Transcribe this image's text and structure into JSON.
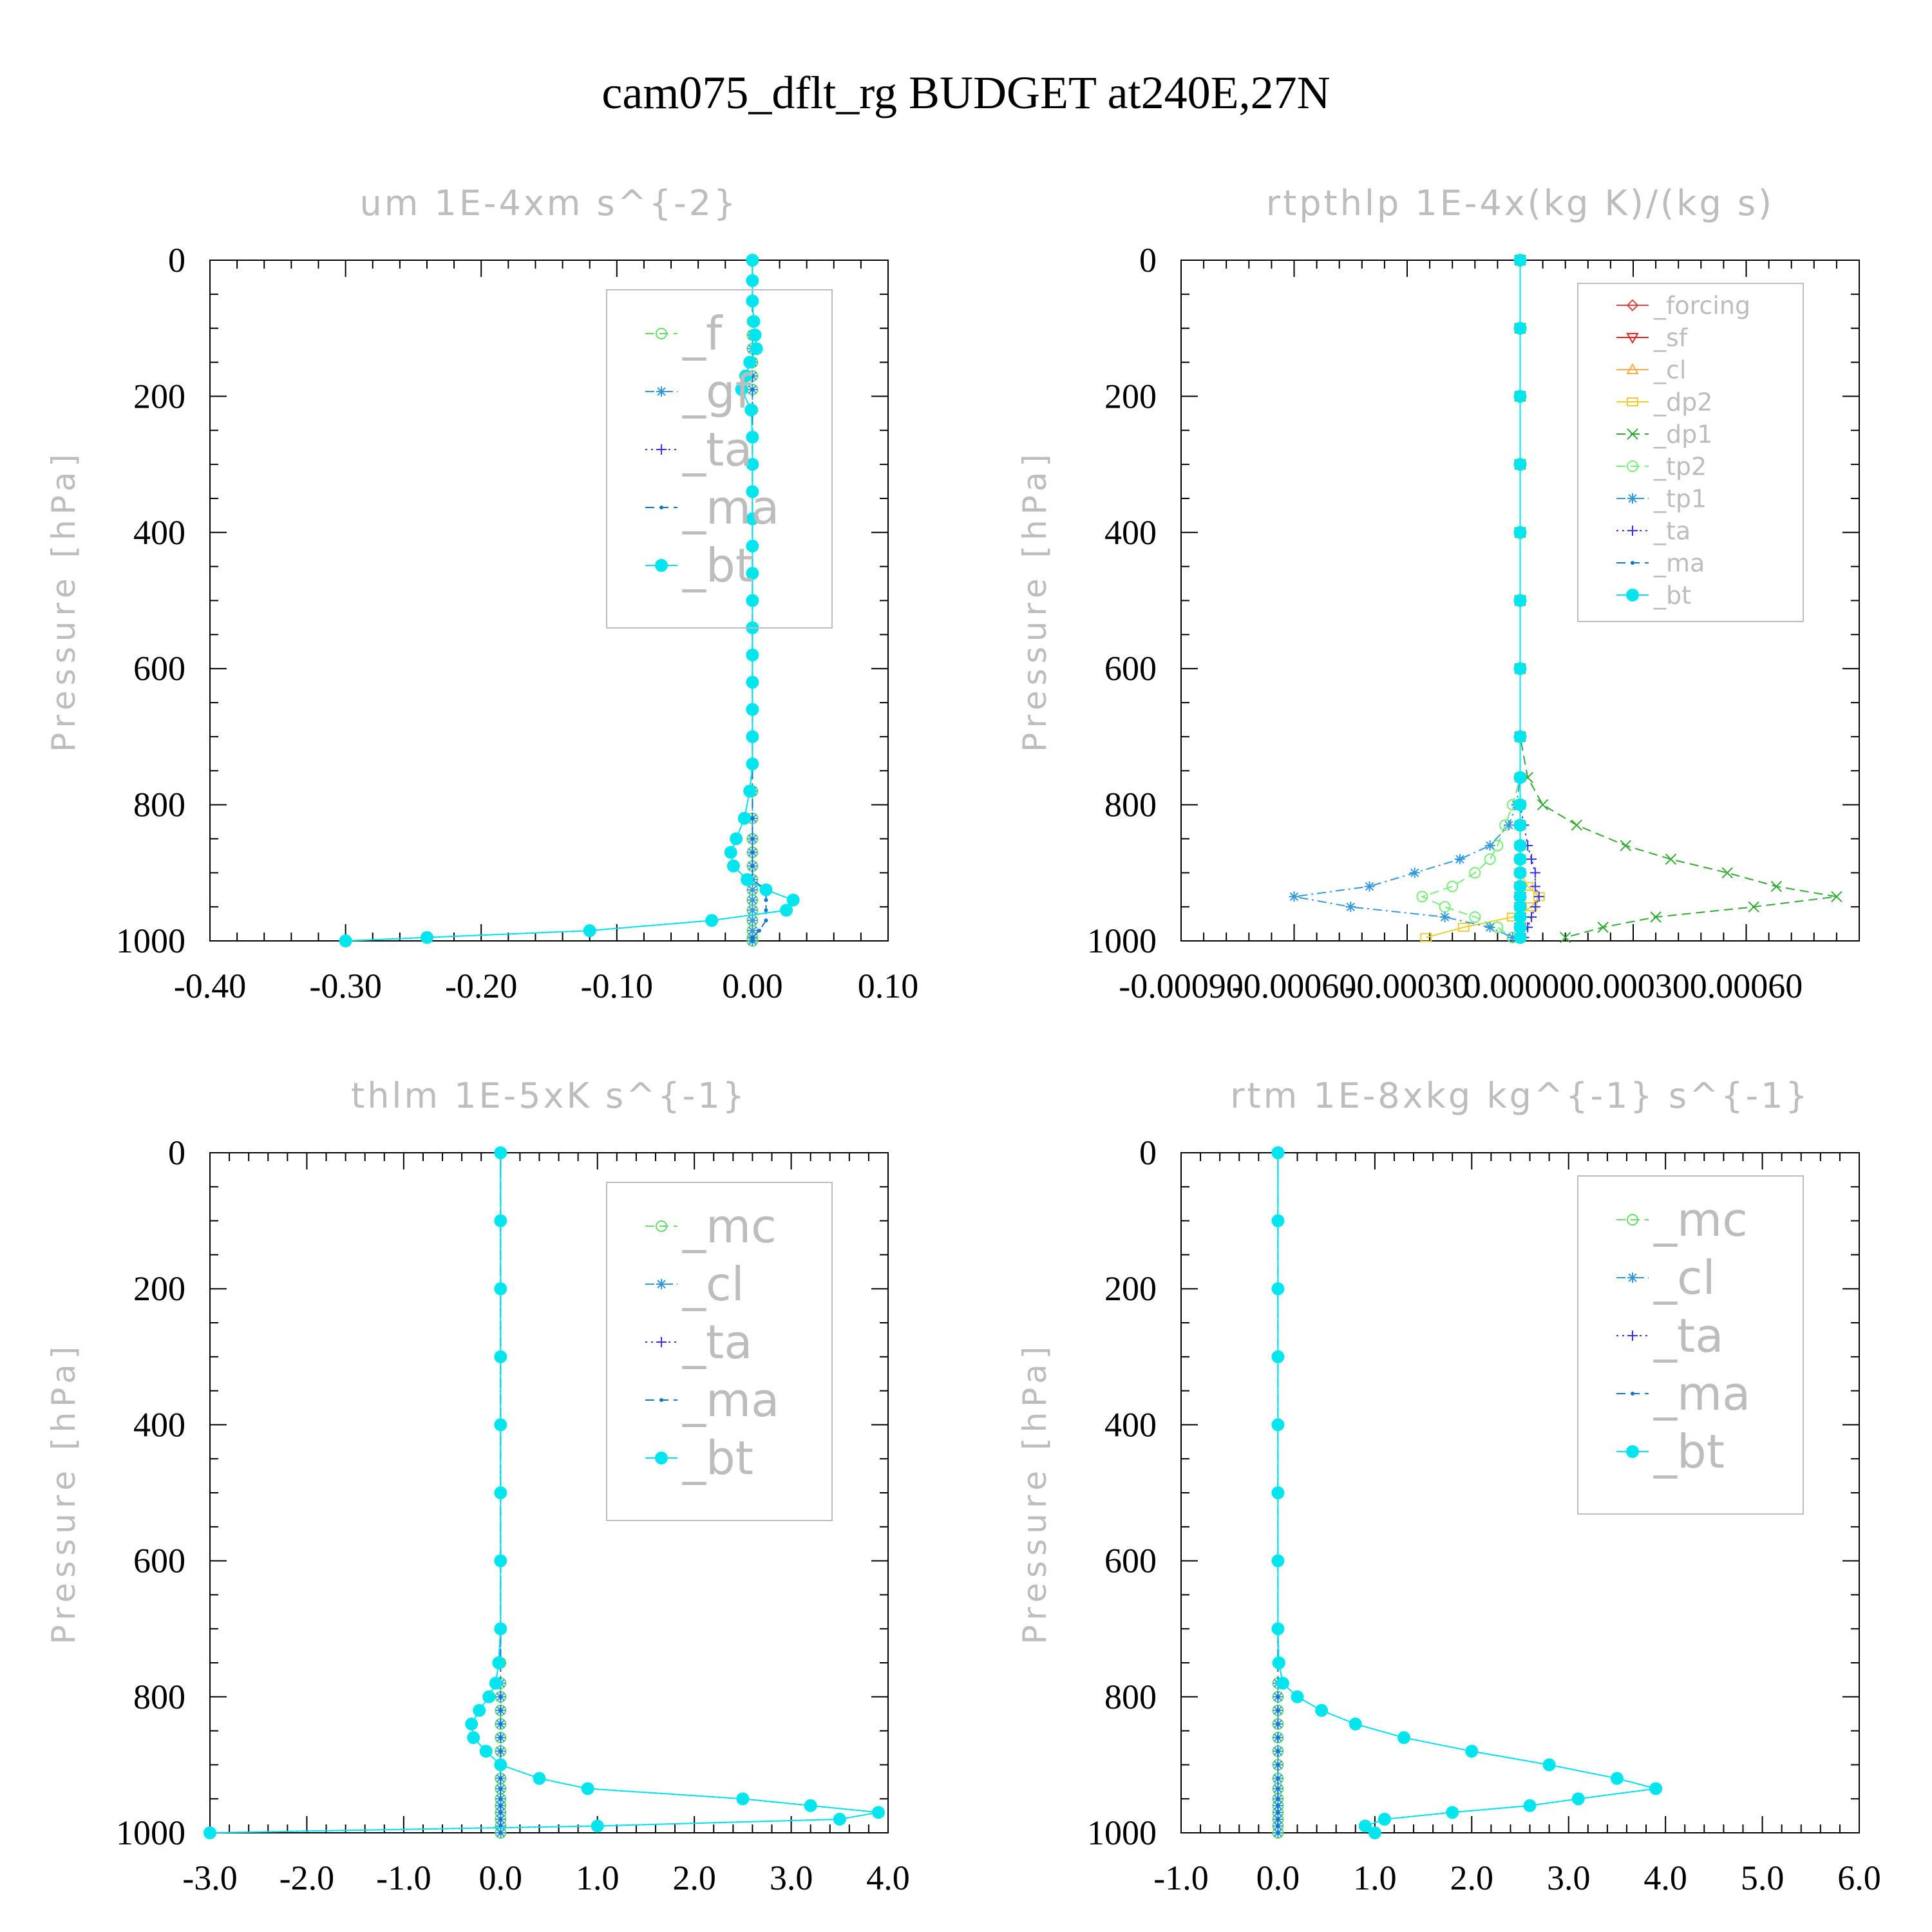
{
  "figure": {
    "title": "cam075_dflt_rg  BUDGET at240E,27N"
  },
  "chart_data": [
    {
      "type": "line",
      "title": "um  1E-4xm s^{-2}",
      "ylabel": "Pressure [hPa]",
      "xlabel": "",
      "xlim": [
        -0.4,
        0.1
      ],
      "ylim": [
        0,
        1000
      ],
      "y_inverted": true,
      "x_ticks": [
        "-0.40",
        "-0.30",
        "-0.20",
        "-0.10",
        "0.00",
        "0.10"
      ],
      "y_ticks": [
        "0",
        "200",
        "400",
        "600",
        "800",
        "1000"
      ],
      "legend_position": "top-right",
      "levels": [
        0,
        30,
        60,
        90,
        110,
        130,
        150,
        170,
        190,
        220,
        260,
        300,
        340,
        380,
        420,
        460,
        500,
        540,
        580,
        620,
        660,
        700,
        740,
        780,
        820,
        850,
        870,
        890,
        910,
        925,
        940,
        955,
        970,
        985,
        995,
        1000
      ],
      "series": [
        {
          "name": "_f",
          "color": "#66dd66",
          "marker": "circle-open",
          "dash": "dashed",
          "values": [
            0,
            0,
            0,
            0,
            0,
            0,
            0,
            0,
            0,
            0,
            0,
            0,
            0,
            0,
            0,
            0,
            0,
            0,
            0,
            0,
            0,
            0,
            0,
            0,
            0,
            0,
            0,
            0,
            0,
            0,
            0,
            0,
            0,
            0,
            0,
            0
          ]
        },
        {
          "name": "_gf",
          "color": "#3399dd",
          "marker": "asterisk",
          "dash": "dashdot",
          "values": [
            0,
            0,
            0,
            0,
            0,
            0,
            0,
            0,
            0,
            0,
            0,
            0,
            0,
            0,
            0,
            0,
            0,
            0,
            0,
            0,
            0,
            0,
            0,
            0,
            0,
            0,
            0,
            0,
            0,
            0,
            0,
            0,
            0,
            0,
            0,
            0
          ]
        },
        {
          "name": "_ta",
          "color": "#3333ee",
          "marker": "plus",
          "dash": "dotted",
          "values": [
            0,
            0,
            0,
            0.001,
            0.002,
            0.003,
            -0.002,
            -0.005,
            -0.008,
            -0.001,
            0,
            0,
            0,
            0,
            0,
            0,
            0,
            0,
            0,
            0,
            0,
            0,
            0,
            -0.002,
            -0.006,
            -0.012,
            -0.016,
            -0.014,
            -0.004,
            0.01,
            0.03,
            0.025,
            -0.03,
            -0.12,
            -0.24,
            -0.3
          ]
        },
        {
          "name": "_ma",
          "color": "#1177cc",
          "marker": "dot",
          "dash": "dashed",
          "values": [
            0,
            0,
            0,
            0,
            0,
            0,
            0,
            0,
            0,
            0,
            0,
            0,
            0,
            0,
            0,
            0,
            0,
            0,
            0,
            0,
            0,
            0,
            0,
            0,
            0,
            0,
            0,
            0,
            0,
            0.01,
            0.01,
            0.01,
            0.01,
            0.005,
            0,
            0
          ]
        },
        {
          "name": "_bt",
          "color": "#00e5ee",
          "marker": "circle-filled",
          "dash": "solid",
          "values": [
            0,
            0,
            0,
            0.001,
            0.002,
            0.003,
            -0.002,
            -0.005,
            -0.008,
            -0.001,
            0,
            0,
            0,
            0,
            0,
            0,
            0,
            0,
            0,
            0,
            0,
            0,
            0,
            -0.002,
            -0.006,
            -0.012,
            -0.016,
            -0.014,
            -0.004,
            0.01,
            0.03,
            0.025,
            -0.03,
            -0.12,
            -0.24,
            -0.3
          ]
        }
      ]
    },
    {
      "type": "line",
      "title": "rtpthlp  1E-4x(kg K)/(kg s)",
      "ylabel": "Pressure [hPa]",
      "xlabel": "",
      "xlim": [
        -0.0009,
        0.0009
      ],
      "ylim": [
        0,
        1000
      ],
      "y_inverted": true,
      "x_ticks": [
        "-0.00090",
        "-0.00060",
        "-0.00030",
        "0.00000",
        "0.00030",
        "0.00060"
      ],
      "y_ticks": [
        "0",
        "200",
        "400",
        "600",
        "800",
        "1000"
      ],
      "legend_position": "top-right",
      "levels": [
        0,
        100,
        200,
        300,
        400,
        500,
        600,
        700,
        760,
        800,
        830,
        860,
        880,
        900,
        920,
        935,
        950,
        965,
        980,
        995
      ],
      "series": [
        {
          "name": "_forcing",
          "color": "#dd4444",
          "marker": "diamond",
          "dash": "solid",
          "values": [
            0,
            0,
            0,
            0,
            0,
            0,
            0,
            0,
            0,
            0,
            0,
            0,
            0,
            0,
            0,
            0,
            0,
            0,
            0,
            0
          ]
        },
        {
          "name": "_sf",
          "color": "#ee2222",
          "marker": "triangle-down",
          "dash": "solid",
          "values": [
            0,
            0,
            0,
            0,
            0,
            0,
            0,
            0,
            0,
            0,
            0,
            0,
            0,
            0,
            0,
            0,
            0,
            0,
            0,
            0
          ]
        },
        {
          "name": "_cl",
          "color": "#ffaa44",
          "marker": "triangle-up",
          "dash": "solid",
          "values": [
            0,
            0,
            0,
            0,
            0,
            0,
            0,
            0,
            0,
            0,
            0,
            0,
            0,
            0,
            0,
            0,
            0,
            0,
            0,
            0
          ]
        },
        {
          "name": "_dp2",
          "color": "#eecc33",
          "marker": "square-open",
          "dash": "solid",
          "values": [
            0,
            0,
            0,
            0,
            0,
            0,
            0,
            0,
            0,
            0,
            0,
            0,
            0,
            0,
            2e-05,
            5e-05,
            3e-05,
            -2e-05,
            -0.00015,
            -0.00025
          ]
        },
        {
          "name": "_dp1",
          "color": "#33aa33",
          "marker": "cross",
          "dash": "dashed",
          "values": [
            0,
            0,
            0,
            0,
            0,
            0,
            0,
            0,
            2e-05,
            6e-05,
            0.00015,
            0.00028,
            0.0004,
            0.00055,
            0.00068,
            0.00084,
            0.00062,
            0.00036,
            0.00022,
            0.00012
          ]
        },
        {
          "name": "_tp2",
          "color": "#77ee77",
          "marker": "circle-open",
          "dash": "dashed",
          "values": [
            0,
            0,
            0,
            0,
            0,
            0,
            0,
            0,
            0,
            -2e-05,
            -4e-05,
            -6e-05,
            -8e-05,
            -0.00012,
            -0.00018,
            -0.00026,
            -0.0002,
            -0.00012,
            -6e-05,
            -2e-05
          ]
        },
        {
          "name": "_tp1",
          "color": "#3399dd",
          "marker": "asterisk",
          "dash": "dashdot",
          "values": [
            0,
            0,
            0,
            0,
            0,
            0,
            0,
            0,
            0,
            -1e-05,
            -3e-05,
            -8e-05,
            -0.00016,
            -0.00028,
            -0.0004,
            -0.0006,
            -0.00045,
            -0.0002,
            -8e-05,
            -2e-05
          ]
        },
        {
          "name": "_ta",
          "color": "#3333ee",
          "marker": "plus",
          "dash": "dotted",
          "values": [
            0,
            0,
            0,
            0,
            0,
            0,
            0,
            0,
            0,
            0,
            1e-05,
            2e-05,
            3e-05,
            4e-05,
            4e-05,
            5e-05,
            4e-05,
            3e-05,
            2e-05,
            1e-05
          ]
        },
        {
          "name": "_ma",
          "color": "#1177cc",
          "marker": "dot",
          "dash": "dashed",
          "values": [
            0,
            0,
            0,
            0,
            0,
            0,
            0,
            0,
            0,
            0,
            0,
            0,
            0,
            0,
            0,
            0,
            0,
            0,
            0,
            0
          ]
        },
        {
          "name": "_bt",
          "color": "#00e5ee",
          "marker": "circle-filled",
          "dash": "solid",
          "values": [
            0,
            0,
            0,
            0,
            0,
            0,
            0,
            0,
            0,
            0,
            0,
            0,
            0,
            0,
            0,
            0,
            0,
            0,
            0,
            0
          ]
        }
      ]
    },
    {
      "type": "line",
      "title": "thlm  1E-5xK s^{-1}",
      "ylabel": "Pressure [hPa]",
      "xlabel": "",
      "xlim": [
        -3.0,
        4.0
      ],
      "ylim": [
        0,
        1000
      ],
      "y_inverted": true,
      "x_ticks": [
        "-3.0",
        "-2.0",
        "-1.0",
        "0.0",
        "1.0",
        "2.0",
        "3.0",
        "4.0"
      ],
      "y_ticks": [
        "0",
        "200",
        "400",
        "600",
        "800",
        "1000"
      ],
      "legend_position": "top-right",
      "levels": [
        0,
        100,
        200,
        300,
        400,
        500,
        600,
        700,
        750,
        780,
        800,
        820,
        840,
        860,
        880,
        900,
        920,
        935,
        950,
        960,
        970,
        980,
        990,
        1000
      ],
      "series": [
        {
          "name": "_mc",
          "color": "#66dd66",
          "marker": "circle-open",
          "dash": "dashed",
          "values": [
            0,
            0,
            0,
            0,
            0,
            0,
            0,
            0,
            0,
            0,
            0,
            0,
            0,
            0,
            0,
            0,
            0,
            0,
            0,
            0,
            0,
            0,
            0,
            0
          ]
        },
        {
          "name": "_cl",
          "color": "#3399dd",
          "marker": "asterisk",
          "dash": "dashdot",
          "values": [
            0,
            0,
            0,
            0,
            0,
            0,
            0,
            0,
            0,
            0,
            0,
            0,
            0,
            0,
            0,
            0,
            0,
            0,
            0,
            0,
            0,
            0,
            0,
            0
          ]
        },
        {
          "name": "_ta",
          "color": "#3333ee",
          "marker": "plus",
          "dash": "dotted",
          "values": [
            0,
            0,
            0,
            0,
            0,
            0,
            0,
            0,
            -0.02,
            -0.05,
            -0.12,
            -0.22,
            -0.3,
            -0.28,
            -0.15,
            0,
            0.4,
            0.9,
            2.5,
            3.2,
            3.9,
            3.5,
            1.0,
            -3.0
          ]
        },
        {
          "name": "_ma",
          "color": "#1177cc",
          "marker": "dot",
          "dash": "dashed",
          "values": [
            0,
            0,
            0,
            0,
            0,
            0,
            0,
            0,
            0,
            0,
            0,
            0,
            0,
            0,
            0,
            0,
            0,
            0,
            0,
            0,
            0,
            0,
            0,
            0
          ]
        },
        {
          "name": "_bt",
          "color": "#00e5ee",
          "marker": "circle-filled",
          "dash": "solid",
          "values": [
            0,
            0,
            0,
            0,
            0,
            0,
            0,
            0,
            -0.02,
            -0.05,
            -0.12,
            -0.22,
            -0.3,
            -0.28,
            -0.15,
            0,
            0.4,
            0.9,
            2.5,
            3.2,
            3.9,
            3.5,
            1.0,
            -3.0
          ]
        }
      ]
    },
    {
      "type": "line",
      "title": "rtm  1E-8xkg kg^{-1} s^{-1}",
      "ylabel": "Pressure [hPa]",
      "xlabel": "",
      "xlim": [
        -1.0,
        6.0
      ],
      "ylim": [
        0,
        1000
      ],
      "y_inverted": true,
      "x_ticks": [
        "-1.0",
        "0.0",
        "1.0",
        "2.0",
        "3.0",
        "4.0",
        "5.0",
        "6.0"
      ],
      "y_ticks": [
        "0",
        "200",
        "400",
        "600",
        "800",
        "1000"
      ],
      "legend_position": "top-right",
      "levels": [
        0,
        100,
        200,
        300,
        400,
        500,
        600,
        700,
        750,
        780,
        800,
        820,
        840,
        860,
        880,
        900,
        920,
        935,
        950,
        960,
        970,
        980,
        990,
        1000
      ],
      "series": [
        {
          "name": "_mc",
          "color": "#66dd66",
          "marker": "circle-open",
          "dash": "dashed",
          "values": [
            0,
            0,
            0,
            0,
            0,
            0,
            0,
            0,
            0,
            0,
            0,
            0,
            0,
            0,
            0,
            0,
            0,
            0,
            0,
            0,
            0,
            0,
            0,
            0
          ]
        },
        {
          "name": "_cl",
          "color": "#3399dd",
          "marker": "asterisk",
          "dash": "dashdot",
          "values": [
            0,
            0,
            0,
            0,
            0,
            0,
            0,
            0,
            0,
            0,
            0,
            0,
            0,
            0,
            0,
            0,
            0,
            0,
            0,
            0,
            0,
            0,
            0,
            0
          ]
        },
        {
          "name": "_ta",
          "color": "#3333ee",
          "marker": "plus",
          "dash": "dotted",
          "values": [
            0,
            0,
            0,
            0,
            0,
            0,
            0,
            0,
            0.01,
            0.05,
            0.2,
            0.45,
            0.8,
            1.3,
            2.0,
            2.8,
            3.5,
            3.9,
            3.1,
            2.6,
            1.8,
            1.1,
            0.9,
            1.0
          ]
        },
        {
          "name": "_ma",
          "color": "#1177cc",
          "marker": "dot",
          "dash": "dashed",
          "values": [
            0,
            0,
            0,
            0,
            0,
            0,
            0,
            0,
            0,
            0,
            0,
            0,
            0,
            0,
            0,
            0,
            0,
            0,
            0,
            0,
            0,
            0,
            0,
            0
          ]
        },
        {
          "name": "_bt",
          "color": "#00e5ee",
          "marker": "circle-filled",
          "dash": "solid",
          "values": [
            0,
            0,
            0,
            0,
            0,
            0,
            0,
            0,
            0.01,
            0.05,
            0.2,
            0.45,
            0.8,
            1.3,
            2.0,
            2.8,
            3.5,
            3.9,
            3.1,
            2.6,
            1.8,
            1.1,
            0.9,
            1.0
          ]
        }
      ]
    }
  ]
}
